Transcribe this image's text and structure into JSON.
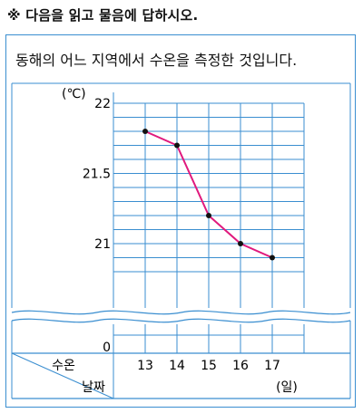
{
  "instruction": "※ 다음을 읽고 물음에 답하시오.",
  "card_title": "동해의 어느 지역에서 수온을 측정한 것입니다.",
  "colors": {
    "grid": "#3a8ed0",
    "line": "#e0197d",
    "point": "#111111",
    "frame": "#3a8ed0"
  },
  "chart_data": {
    "type": "line",
    "title": "",
    "x_axis_label": "날짜",
    "y_axis_label": "수온",
    "x_unit": "(일)",
    "y_unit": "(℃)",
    "categories": [
      "13",
      "14",
      "15",
      "16",
      "17"
    ],
    "values": [
      21.8,
      21.7,
      21.2,
      21.0,
      20.9
    ],
    "y_ticks": [
      {
        "value": 22,
        "label": "22"
      },
      {
        "value": 21.5,
        "label": "21.5"
      },
      {
        "value": 21,
        "label": "21"
      },
      {
        "value": 0,
        "label": "0"
      }
    ],
    "y_axis_break": {
      "from": 0,
      "to": 20.8
    },
    "y_range": [
      20.8,
      22
    ],
    "minor_step": 0.1,
    "grid": true
  }
}
